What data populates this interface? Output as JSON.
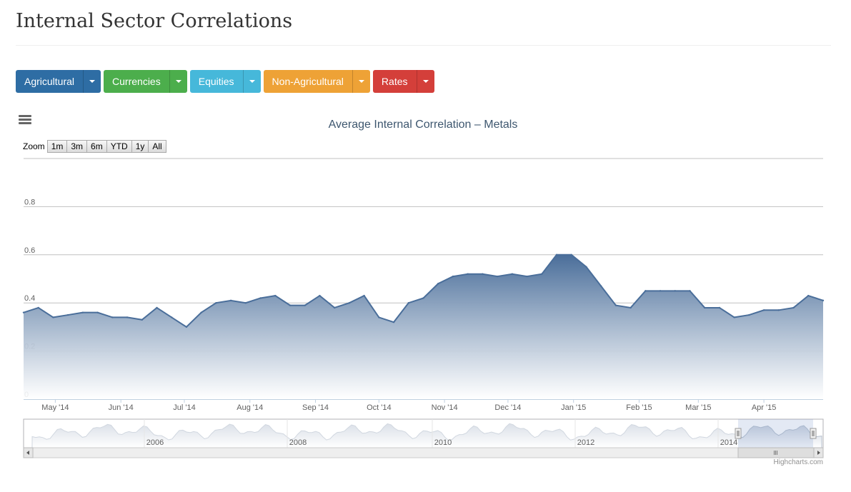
{
  "page": {
    "title": "Internal Sector Correlations"
  },
  "sector_buttons": [
    {
      "label": "Agricultural",
      "color": "#2e6da4"
    },
    {
      "label": "Currencies",
      "color": "#4cae4c"
    },
    {
      "label": "Equities",
      "color": "#46b8da"
    },
    {
      "label": "Non-Agricultural",
      "color": "#eea236"
    },
    {
      "label": "Rates",
      "color": "#d43f3a"
    }
  ],
  "chart": {
    "zoom_label": "Zoom",
    "zoom_buttons": [
      "1m",
      "3m",
      "6m",
      "YTD",
      "1y",
      "All"
    ],
    "credits": "Highcharts.com",
    "navigator_years": [
      "2006",
      "2008",
      "2010",
      "2012",
      "2014"
    ],
    "series_color": "#4a6e9a"
  },
  "chart_data": {
    "type": "area",
    "title": "Average Internal Correlation – Metals",
    "xlabel": "",
    "ylabel": "",
    "ylim": [
      0,
      1.0
    ],
    "yticks": [
      "0",
      "0.2",
      "0.4",
      "0.6",
      "0.8"
    ],
    "xticks": [
      "May '14",
      "Jun '14",
      "Jul '14",
      "Aug '14",
      "Sep '14",
      "Oct '14",
      "Nov '14",
      "Dec '14",
      "Jan '15",
      "Feb '15",
      "Mar '15",
      "Apr '15"
    ],
    "grid": true,
    "legend": "none",
    "x": [
      "2014-04-16",
      "2014-04-23",
      "2014-04-30",
      "2014-05-07",
      "2014-05-14",
      "2014-05-21",
      "2014-05-28",
      "2014-06-04",
      "2014-06-11",
      "2014-06-18",
      "2014-06-25",
      "2014-07-02",
      "2014-07-09",
      "2014-07-16",
      "2014-07-23",
      "2014-07-30",
      "2014-08-06",
      "2014-08-13",
      "2014-08-20",
      "2014-08-27",
      "2014-09-03",
      "2014-09-10",
      "2014-09-17",
      "2014-09-24",
      "2014-10-01",
      "2014-10-08",
      "2014-10-15",
      "2014-10-22",
      "2014-10-29",
      "2014-11-05",
      "2014-11-12",
      "2014-11-19",
      "2014-11-26",
      "2014-12-03",
      "2014-12-10",
      "2014-12-17",
      "2014-12-24",
      "2014-12-31",
      "2015-01-07",
      "2015-01-14",
      "2015-01-21",
      "2015-01-28",
      "2015-02-04",
      "2015-02-11",
      "2015-02-18",
      "2015-02-25",
      "2015-03-04",
      "2015-03-11",
      "2015-03-18",
      "2015-03-25",
      "2015-04-01",
      "2015-04-08",
      "2015-04-15",
      "2015-04-22",
      "2015-04-29"
    ],
    "series": [
      {
        "values": [
          0.36,
          0.38,
          0.34,
          0.35,
          0.36,
          0.36,
          0.34,
          0.34,
          0.33,
          0.38,
          0.34,
          0.3,
          0.36,
          0.4,
          0.41,
          0.4,
          0.42,
          0.43,
          0.39,
          0.39,
          0.43,
          0.38,
          0.4,
          0.43,
          0.34,
          0.32,
          0.4,
          0.42,
          0.48,
          0.51,
          0.52,
          0.52,
          0.51,
          0.52,
          0.51,
          0.52,
          0.6,
          0.6,
          0.55,
          0.47,
          0.39,
          0.38,
          0.45,
          0.45,
          0.45,
          0.45,
          0.38,
          0.38,
          0.34,
          0.35,
          0.37,
          0.37,
          0.38,
          0.43,
          0.41
        ]
      }
    ]
  }
}
